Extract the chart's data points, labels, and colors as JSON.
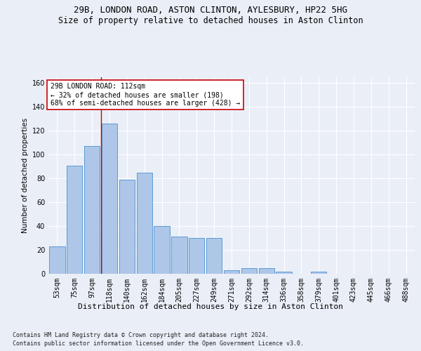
{
  "title_line1": "29B, LONDON ROAD, ASTON CLINTON, AYLESBURY, HP22 5HG",
  "title_line2": "Size of property relative to detached houses in Aston Clinton",
  "xlabel": "Distribution of detached houses by size in Aston Clinton",
  "ylabel": "Number of detached properties",
  "categories": [
    "53sqm",
    "75sqm",
    "97sqm",
    "118sqm",
    "140sqm",
    "162sqm",
    "184sqm",
    "205sqm",
    "227sqm",
    "249sqm",
    "271sqm",
    "292sqm",
    "314sqm",
    "336sqm",
    "358sqm",
    "379sqm",
    "401sqm",
    "423sqm",
    "445sqm",
    "466sqm",
    "488sqm"
  ],
  "values": [
    23,
    91,
    107,
    126,
    79,
    85,
    40,
    31,
    30,
    30,
    3,
    5,
    5,
    2,
    0,
    2,
    0,
    0,
    0,
    0,
    0
  ],
  "bar_color": "#aec6e8",
  "bar_edge_color": "#5b9bd5",
  "vline_color": "#cc0000",
  "vline_x_index": 2.5,
  "annotation_text": "29B LONDON ROAD: 112sqm\n← 32% of detached houses are smaller (198)\n68% of semi-detached houses are larger (428) →",
  "annotation_box_color": "#ffffff",
  "annotation_box_edge": "#cc0000",
  "ylim": [
    0,
    165
  ],
  "yticks": [
    0,
    20,
    40,
    60,
    80,
    100,
    120,
    140,
    160
  ],
  "footer_line1": "Contains HM Land Registry data © Crown copyright and database right 2024.",
  "footer_line2": "Contains public sector information licensed under the Open Government Licence v3.0.",
  "bg_color": "#eaeff7",
  "plot_bg_color": "#eaeff7",
  "grid_color": "#ffffff",
  "title_fontsize": 9,
  "subtitle_fontsize": 8.5,
  "xlabel_fontsize": 8,
  "ylabel_fontsize": 7.5,
  "tick_fontsize": 7,
  "annotation_fontsize": 7,
  "footer_fontsize": 6
}
